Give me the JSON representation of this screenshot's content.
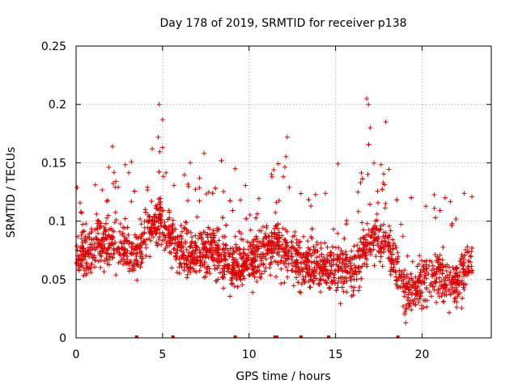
{
  "chart_data": {
    "type": "scatter",
    "title": "Day 178 of 2019, SRMTID for receiver p138",
    "xlabel": "GPS time / hours",
    "ylabel": "SRMTID / TECUs",
    "xlim": [
      0,
      24
    ],
    "ylim": [
      0,
      0.25
    ],
    "xticks": [
      0,
      5,
      10,
      15,
      20
    ],
    "xtick_labels": [
      "0",
      "5",
      "10",
      "15",
      "20"
    ],
    "yticks": [
      0,
      0.05,
      0.1,
      0.15,
      0.2,
      0.25
    ],
    "ytick_labels": [
      "0",
      "0.05",
      "0.1",
      "0.15",
      "0.2",
      "0.25"
    ],
    "grid": true,
    "marker": "+",
    "color": "#e00000",
    "series": [
      {
        "name": "SRMTID",
        "trend": [
          {
            "x": 0.0,
            "y": 0.07
          },
          {
            "x": 1.0,
            "y": 0.078
          },
          {
            "x": 2.0,
            "y": 0.082
          },
          {
            "x": 3.0,
            "y": 0.075
          },
          {
            "x": 3.5,
            "y": 0.07
          },
          {
            "x": 4.0,
            "y": 0.09
          },
          {
            "x": 4.8,
            "y": 0.1
          },
          {
            "x": 5.3,
            "y": 0.095
          },
          {
            "x": 6.0,
            "y": 0.07
          },
          {
            "x": 7.0,
            "y": 0.072
          },
          {
            "x": 8.0,
            "y": 0.075
          },
          {
            "x": 9.0,
            "y": 0.06
          },
          {
            "x": 10.0,
            "y": 0.065
          },
          {
            "x": 11.0,
            "y": 0.075
          },
          {
            "x": 12.0,
            "y": 0.078
          },
          {
            "x": 13.0,
            "y": 0.065
          },
          {
            "x": 14.0,
            "y": 0.06
          },
          {
            "x": 15.0,
            "y": 0.062
          },
          {
            "x": 16.0,
            "y": 0.058
          },
          {
            "x": 17.0,
            "y": 0.088
          },
          {
            "x": 18.0,
            "y": 0.08
          },
          {
            "x": 18.5,
            "y": 0.06
          },
          {
            "x": 19.0,
            "y": 0.04
          },
          {
            "x": 20.0,
            "y": 0.048
          },
          {
            "x": 21.0,
            "y": 0.055
          },
          {
            "x": 22.0,
            "y": 0.045
          },
          {
            "x": 22.9,
            "y": 0.07
          }
        ],
        "peaks": [
          {
            "x": 4.8,
            "y": 0.2
          },
          {
            "x": 5.0,
            "y": 0.187
          },
          {
            "x": 5.0,
            "y": 0.163
          },
          {
            "x": 2.1,
            "y": 0.164
          },
          {
            "x": 4.4,
            "y": 0.162
          },
          {
            "x": 7.4,
            "y": 0.158
          },
          {
            "x": 9.2,
            "y": 0.145
          },
          {
            "x": 12.2,
            "y": 0.172
          },
          {
            "x": 16.8,
            "y": 0.205
          },
          {
            "x": 16.9,
            "y": 0.2
          },
          {
            "x": 17.9,
            "y": 0.185
          },
          {
            "x": 17.0,
            "y": 0.18
          },
          {
            "x": 11.3,
            "y": 0.14
          },
          {
            "x": 6.6,
            "y": 0.15
          }
        ]
      }
    ],
    "zero_markers_x": [
      3.5,
      5.6,
      9.2,
      11.5,
      11.6,
      13.0,
      14.6,
      18.6
    ]
  }
}
